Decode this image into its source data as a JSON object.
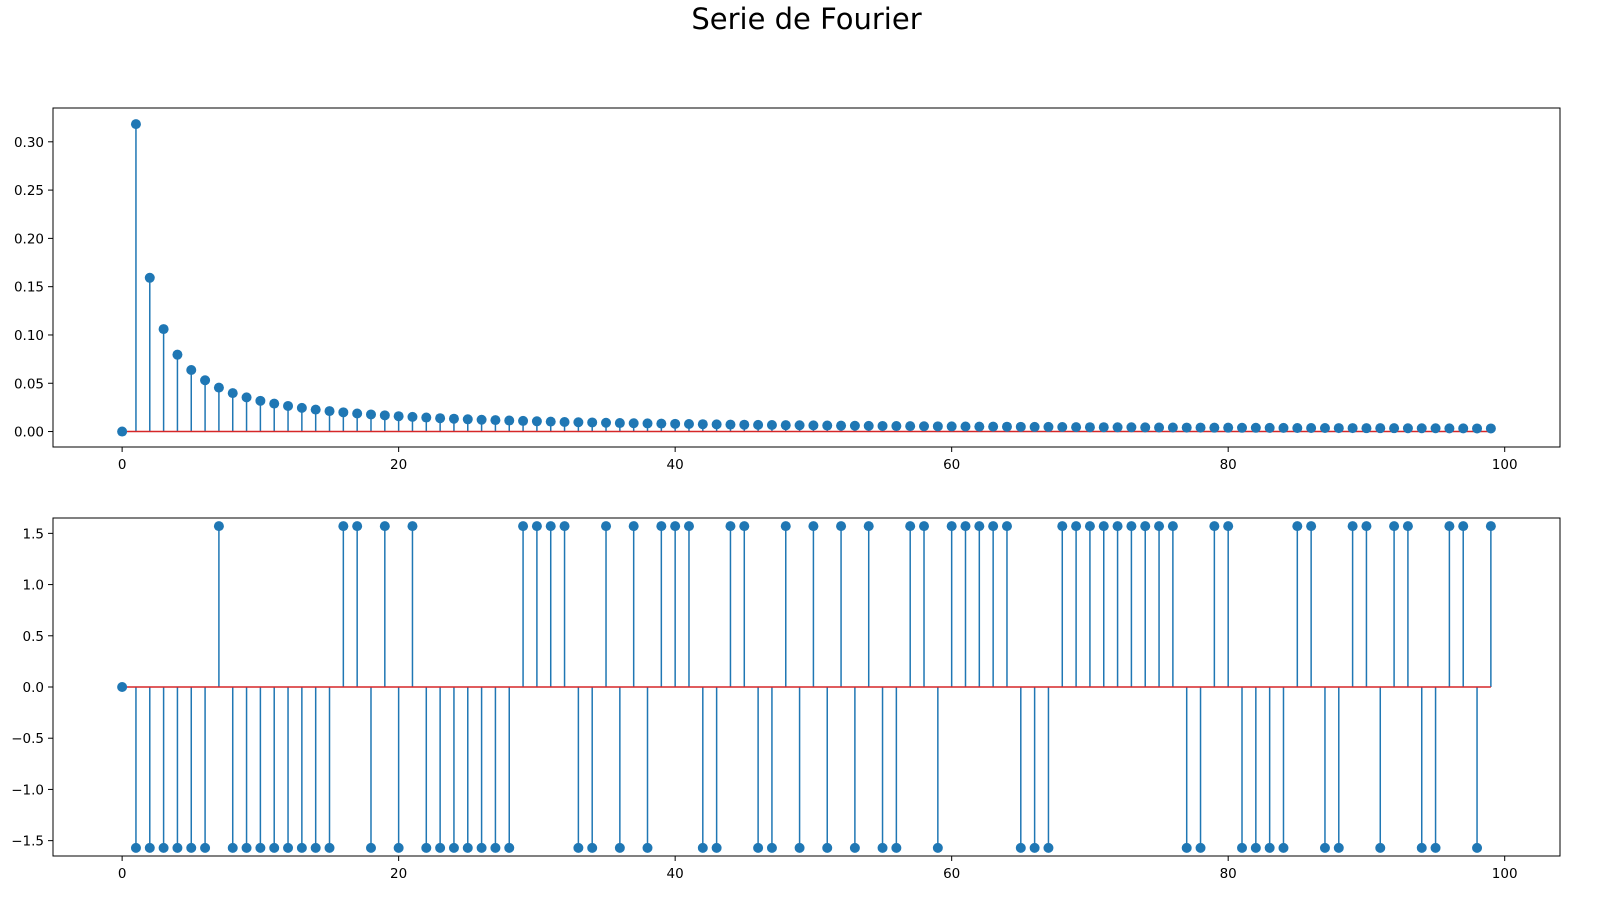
{
  "title": "Serie de Fourier",
  "chart_data": [
    {
      "type": "stem",
      "title": "",
      "xlabel": "",
      "ylabel": "",
      "xlim": [
        -5,
        104
      ],
      "ylim": [
        -0.016,
        0.335
      ],
      "xticks": [
        0,
        20,
        40,
        60,
        80,
        100
      ],
      "yticks": [
        0.0,
        0.05,
        0.1,
        0.15,
        0.2,
        0.25,
        0.3
      ],
      "ytick_labels": [
        "0.00",
        "0.05",
        "0.10",
        "0.15",
        "0.20",
        "0.25",
        "0.30"
      ],
      "grid": false,
      "x_range": [
        0,
        99
      ],
      "values": [
        0,
        0.3183,
        0.1592,
        0.1061,
        0.0796,
        0.0637,
        0.0531,
        0.0455,
        0.0398,
        0.0354,
        0.0318,
        0.0289,
        0.0265,
        0.0245,
        0.0227,
        0.0212,
        0.0199,
        0.0187,
        0.0177,
        0.0168,
        0.0159,
        0.0152,
        0.0145,
        0.0138,
        0.0133,
        0.0127,
        0.0122,
        0.0118,
        0.0114,
        0.011,
        0.0106,
        0.0103,
        0.0099,
        0.0096,
        0.0094,
        0.0091,
        0.0088,
        0.0086,
        0.0084,
        0.0082,
        0.008,
        0.0078,
        0.0076,
        0.0074,
        0.0072,
        0.0071,
        0.0069,
        0.0068,
        0.0066,
        0.0065,
        0.0064,
        0.0062,
        0.0061,
        0.006,
        0.0059,
        0.0058,
        0.0057,
        0.0056,
        0.0055,
        0.0054,
        0.0053,
        0.0052,
        0.0051,
        0.0051,
        0.005,
        0.0049,
        0.0048,
        0.0048,
        0.0047,
        0.0046,
        0.0045,
        0.0045,
        0.0044,
        0.0044,
        0.0043,
        0.0042,
        0.0042,
        0.0041,
        0.0041,
        0.004,
        0.004,
        0.0039,
        0.0039,
        0.0038,
        0.0038,
        0.0037,
        0.0037,
        0.0037,
        0.0036,
        0.0036,
        0.0035,
        0.0035,
        0.0035,
        0.0034,
        0.0034,
        0.0034,
        0.0033,
        0.0033,
        0.0032,
        0.0032
      ],
      "colors": {
        "stem": "#1f77b4",
        "baseline": "#d62728",
        "axes": "#000000"
      }
    },
    {
      "type": "stem",
      "title": "",
      "xlabel": "",
      "ylabel": "",
      "xlim": [
        -5,
        104
      ],
      "ylim": [
        -1.65,
        1.65
      ],
      "xticks": [
        0,
        20,
        40,
        60,
        80,
        100
      ],
      "yticks": [
        -1.5,
        -1.0,
        -0.5,
        0.0,
        0.5,
        1.0,
        1.5
      ],
      "ytick_labels": [
        "−1.5",
        "−1.0",
        "−0.5",
        "0.0",
        "0.5",
        "1.0",
        "1.5"
      ],
      "grid": false,
      "x_range": [
        0,
        99
      ],
      "values": [
        0,
        -1.5708,
        -1.5708,
        -1.5708,
        -1.5708,
        -1.5708,
        -1.5708,
        1.5708,
        -1.5708,
        -1.5708,
        -1.5708,
        -1.5708,
        -1.5708,
        -1.5708,
        -1.5708,
        -1.5708,
        1.5708,
        1.5708,
        -1.5708,
        1.5708,
        -1.5708,
        1.5708,
        -1.5708,
        -1.5708,
        -1.5708,
        -1.5708,
        -1.5708,
        -1.5708,
        -1.5708,
        1.5708,
        1.5708,
        1.5708,
        1.5708,
        -1.5708,
        -1.5708,
        1.5708,
        -1.5708,
        1.5708,
        -1.5708,
        1.5708,
        1.5708,
        1.5708,
        -1.5708,
        -1.5708,
        1.5708,
        1.5708,
        -1.5708,
        -1.5708,
        1.5708,
        -1.5708,
        1.5708,
        -1.5708,
        1.5708,
        -1.5708,
        1.5708,
        -1.5708,
        -1.5708,
        1.5708,
        1.5708,
        -1.5708,
        1.5708,
        1.5708,
        1.5708,
        1.5708,
        1.5708,
        -1.5708,
        -1.5708,
        -1.5708,
        1.5708,
        1.5708,
        1.5708,
        1.5708,
        1.5708,
        1.5708,
        1.5708,
        1.5708,
        1.5708,
        -1.5708,
        -1.5708,
        1.5708,
        1.5708,
        -1.5708,
        -1.5708,
        -1.5708,
        -1.5708,
        1.5708,
        1.5708,
        -1.5708,
        -1.5708,
        1.5708,
        1.5708,
        -1.5708,
        1.5708,
        1.5708,
        -1.5708,
        -1.5708,
        1.5708,
        1.5708,
        -1.5708,
        1.5708
      ],
      "colors": {
        "stem": "#1f77b4",
        "baseline": "#d62728",
        "axes": "#000000"
      }
    }
  ]
}
